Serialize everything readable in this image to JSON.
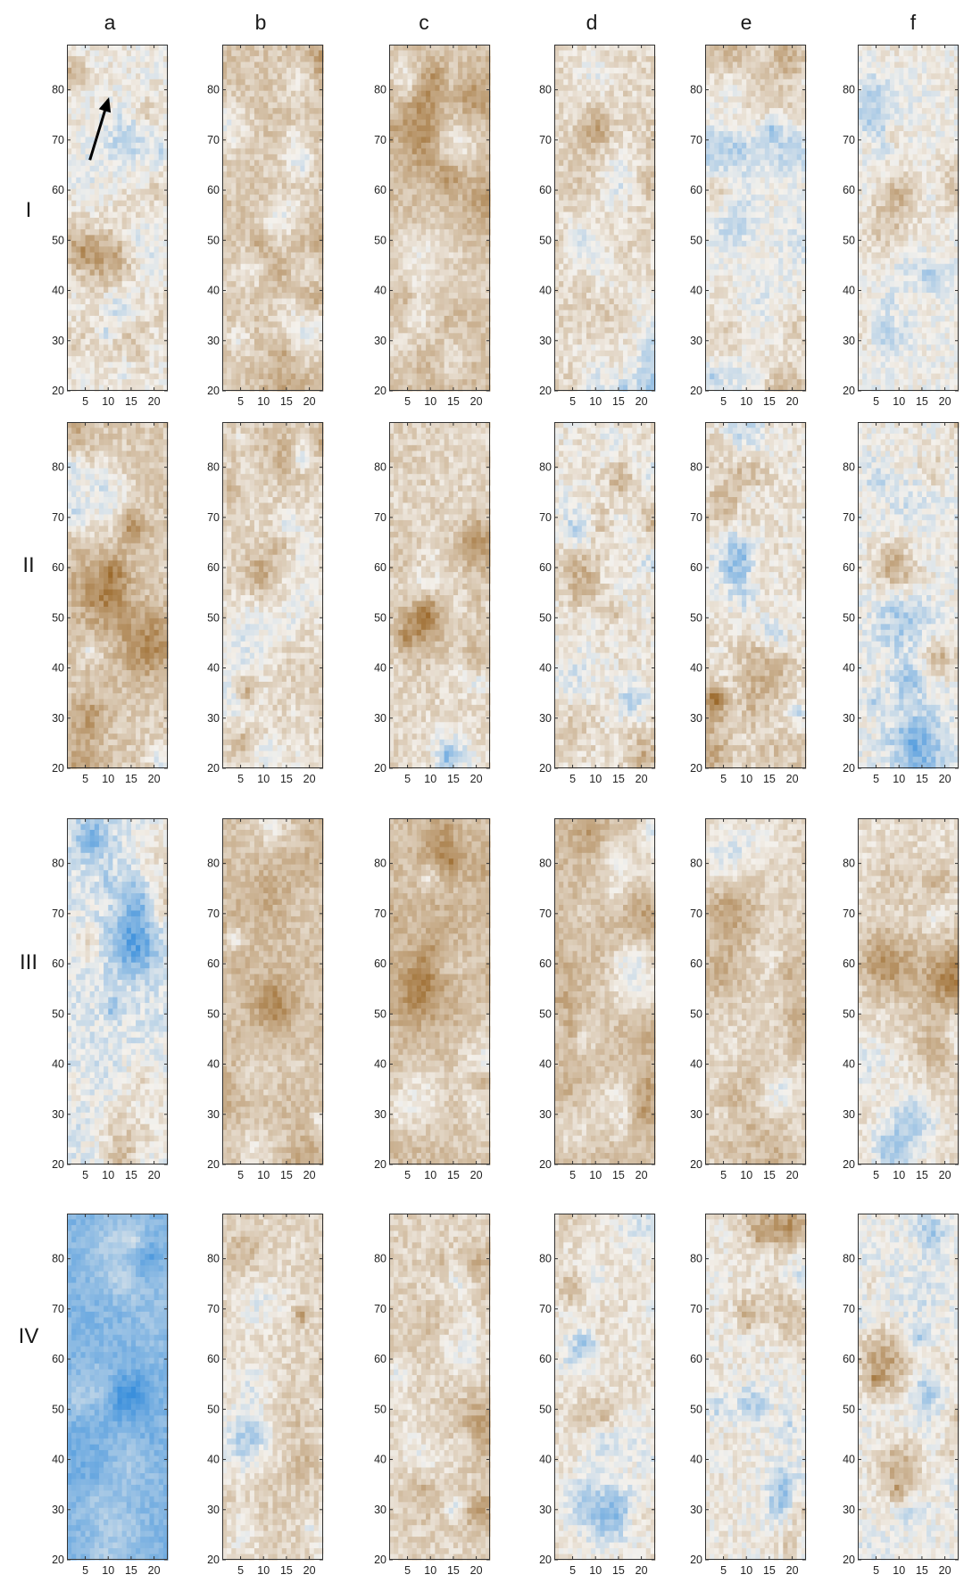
{
  "figure": {
    "column_labels": [
      "a",
      "b",
      "c",
      "d",
      "e",
      "f"
    ],
    "row_labels": [
      "I",
      "II",
      "III",
      "IV"
    ]
  },
  "chart_data": {
    "type": "heatmap",
    "panel_grid": {
      "rows": 4,
      "columns": 6
    },
    "x_ticks": [
      5,
      10,
      15,
      20
    ],
    "y_ticks": [
      20,
      30,
      40,
      50,
      60,
      70,
      80
    ],
    "xlim": [
      1,
      23
    ],
    "ylim": [
      20,
      89
    ],
    "colormap": {
      "low": "#3a8fdc",
      "mid": "#f4f1ec",
      "high": "#9c6a2c"
    },
    "annotation": {
      "type": "arrow",
      "panel": "I-a",
      "from": [
        6,
        66
      ],
      "to": [
        10,
        78
      ]
    },
    "panels": [
      {
        "row": "I",
        "col": "a",
        "mean_level": 0.05,
        "variation": 0.45,
        "seed": 11
      },
      {
        "row": "I",
        "col": "b",
        "mean_level": 0.3,
        "variation": 0.4,
        "seed": 12
      },
      {
        "row": "I",
        "col": "c",
        "mean_level": 0.36,
        "variation": 0.38,
        "seed": 13
      },
      {
        "row": "I",
        "col": "d",
        "mean_level": 0.18,
        "variation": 0.42,
        "seed": 14
      },
      {
        "row": "I",
        "col": "e",
        "mean_level": 0.08,
        "variation": 0.4,
        "seed": 15
      },
      {
        "row": "I",
        "col": "f",
        "mean_level": 0.0,
        "variation": 0.42,
        "seed": 16
      },
      {
        "row": "II",
        "col": "a",
        "mean_level": 0.28,
        "variation": 0.42,
        "seed": 21
      },
      {
        "row": "II",
        "col": "b",
        "mean_level": 0.18,
        "variation": 0.42,
        "seed": 22
      },
      {
        "row": "II",
        "col": "c",
        "mean_level": 0.2,
        "variation": 0.42,
        "seed": 23
      },
      {
        "row": "II",
        "col": "d",
        "mean_level": 0.08,
        "variation": 0.48,
        "seed": 24
      },
      {
        "row": "II",
        "col": "e",
        "mean_level": 0.1,
        "variation": 0.48,
        "seed": 25
      },
      {
        "row": "II",
        "col": "f",
        "mean_level": -0.02,
        "variation": 0.48,
        "seed": 26
      },
      {
        "row": "III",
        "col": "a",
        "mean_level": -0.12,
        "variation": 0.45,
        "seed": 31
      },
      {
        "row": "III",
        "col": "b",
        "mean_level": 0.36,
        "variation": 0.36,
        "seed": 32
      },
      {
        "row": "III",
        "col": "c",
        "mean_level": 0.36,
        "variation": 0.36,
        "seed": 33
      },
      {
        "row": "III",
        "col": "d",
        "mean_level": 0.38,
        "variation": 0.36,
        "seed": 34
      },
      {
        "row": "III",
        "col": "e",
        "mean_level": 0.22,
        "variation": 0.38,
        "seed": 35
      },
      {
        "row": "III",
        "col": "f",
        "mean_level": 0.14,
        "variation": 0.4,
        "seed": 36
      },
      {
        "row": "IV",
        "col": "a",
        "mean_level": -0.6,
        "variation": 0.3,
        "seed": 41
      },
      {
        "row": "IV",
        "col": "b",
        "mean_level": 0.22,
        "variation": 0.4,
        "seed": 42
      },
      {
        "row": "IV",
        "col": "c",
        "mean_level": 0.22,
        "variation": 0.4,
        "seed": 43
      },
      {
        "row": "IV",
        "col": "d",
        "mean_level": 0.12,
        "variation": 0.42,
        "seed": 44
      },
      {
        "row": "IV",
        "col": "e",
        "mean_level": 0.05,
        "variation": 0.45,
        "seed": 45
      },
      {
        "row": "IV",
        "col": "f",
        "mean_level": 0.0,
        "variation": 0.45,
        "seed": 46
      }
    ]
  }
}
